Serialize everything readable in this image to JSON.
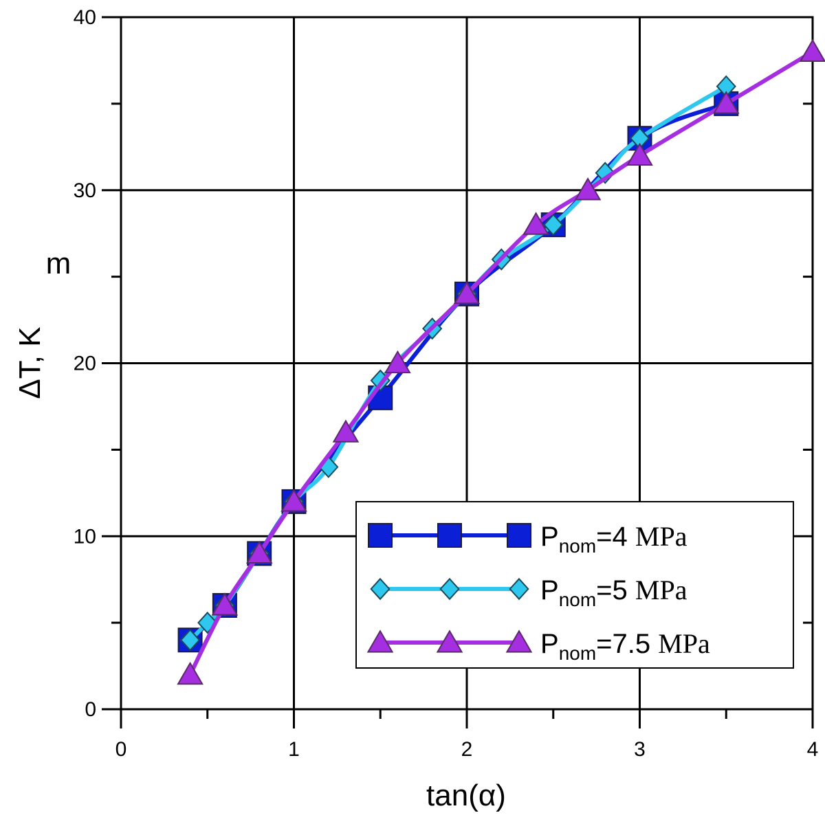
{
  "chart_data": {
    "type": "line",
    "xlabel": "tan(α)",
    "ylabel": "ΔT, K",
    "annotation": "m",
    "xlim": [
      0,
      4
    ],
    "ylim": [
      0,
      40
    ],
    "xticks": [
      0,
      1,
      2,
      3,
      4
    ],
    "yticks": [
      0,
      10,
      20,
      30,
      40
    ],
    "grid": true,
    "legend_position": "bottom-right",
    "series": [
      {
        "name": "P=4 MPa",
        "label_main": "P",
        "label_sub": "nom",
        "label_value": "=4",
        "label_unit": "MPa",
        "color": "#0a1fd6",
        "marker": "square",
        "x": [
          0.4,
          0.6,
          0.8,
          1.0,
          1.5,
          2.0,
          2.5,
          3.0,
          3.5
        ],
        "y": [
          4,
          6,
          9,
          12,
          18,
          24,
          28,
          33,
          35
        ]
      },
      {
        "name": "P=5 MPa",
        "label_main": "P",
        "label_sub": "nom",
        "label_value": "=5",
        "label_unit": "MPa",
        "color": "#2ec8ee",
        "marker": "diamond",
        "x": [
          0.4,
          0.5,
          0.6,
          0.8,
          1.0,
          1.2,
          1.5,
          1.8,
          2.0,
          2.2,
          2.5,
          2.8,
          3.0,
          3.5
        ],
        "y": [
          4,
          5,
          6,
          9,
          12,
          14,
          19,
          22,
          24,
          26,
          28,
          31,
          33,
          36
        ]
      },
      {
        "name": "P=7.5 MPa",
        "label_main": "P",
        "label_sub": "nom",
        "label_value": "=7.5",
        "label_unit": "MPa",
        "color": "#a52fe0",
        "marker": "triangle",
        "x": [
          0.4,
          0.6,
          0.8,
          1.0,
          1.3,
          1.6,
          2.0,
          2.4,
          2.7,
          3.0,
          3.5,
          4.0
        ],
        "y": [
          2,
          6,
          9,
          12,
          16,
          20,
          24,
          28,
          30,
          32,
          35,
          38
        ]
      }
    ]
  }
}
